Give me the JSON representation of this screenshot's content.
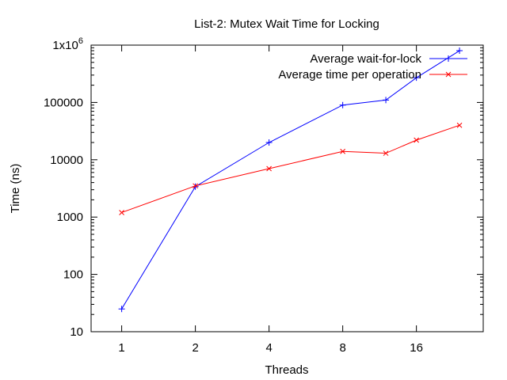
{
  "chart_data": {
    "type": "line",
    "title": "List-2: Mutex Wait Time for Locking",
    "xlabel": "Threads",
    "ylabel": "Time (ns)",
    "x_scale": "log2",
    "y_scale": "log10",
    "xlim": [
      0.75,
      30
    ],
    "ylim": [
      10,
      1000000
    ],
    "x_ticks": [
      1,
      2,
      4,
      8,
      16
    ],
    "x_tick_labels": [
      "1",
      "2",
      "4",
      "8",
      "16"
    ],
    "y_ticks": [
      10,
      100,
      1000,
      10000,
      100000,
      1000000
    ],
    "y_tick_labels": [
      "10",
      "100",
      "1000",
      "10000",
      "100000",
      "1x10"
    ],
    "y_top_exponent": "6",
    "grid": false,
    "legend_position": "top-right",
    "x": [
      1,
      2,
      4,
      8,
      12,
      16,
      24
    ],
    "series": [
      {
        "name": "Average wait-for-lock",
        "color": "#0000ff",
        "marker": "plus",
        "values": [
          25,
          3400,
          20000,
          90000,
          110000,
          270000,
          800000
        ]
      },
      {
        "name": "Average time per operation",
        "color": "#ff0000",
        "marker": "cross",
        "values": [
          1200,
          3500,
          7000,
          14000,
          13000,
          22000,
          40000
        ]
      }
    ]
  }
}
